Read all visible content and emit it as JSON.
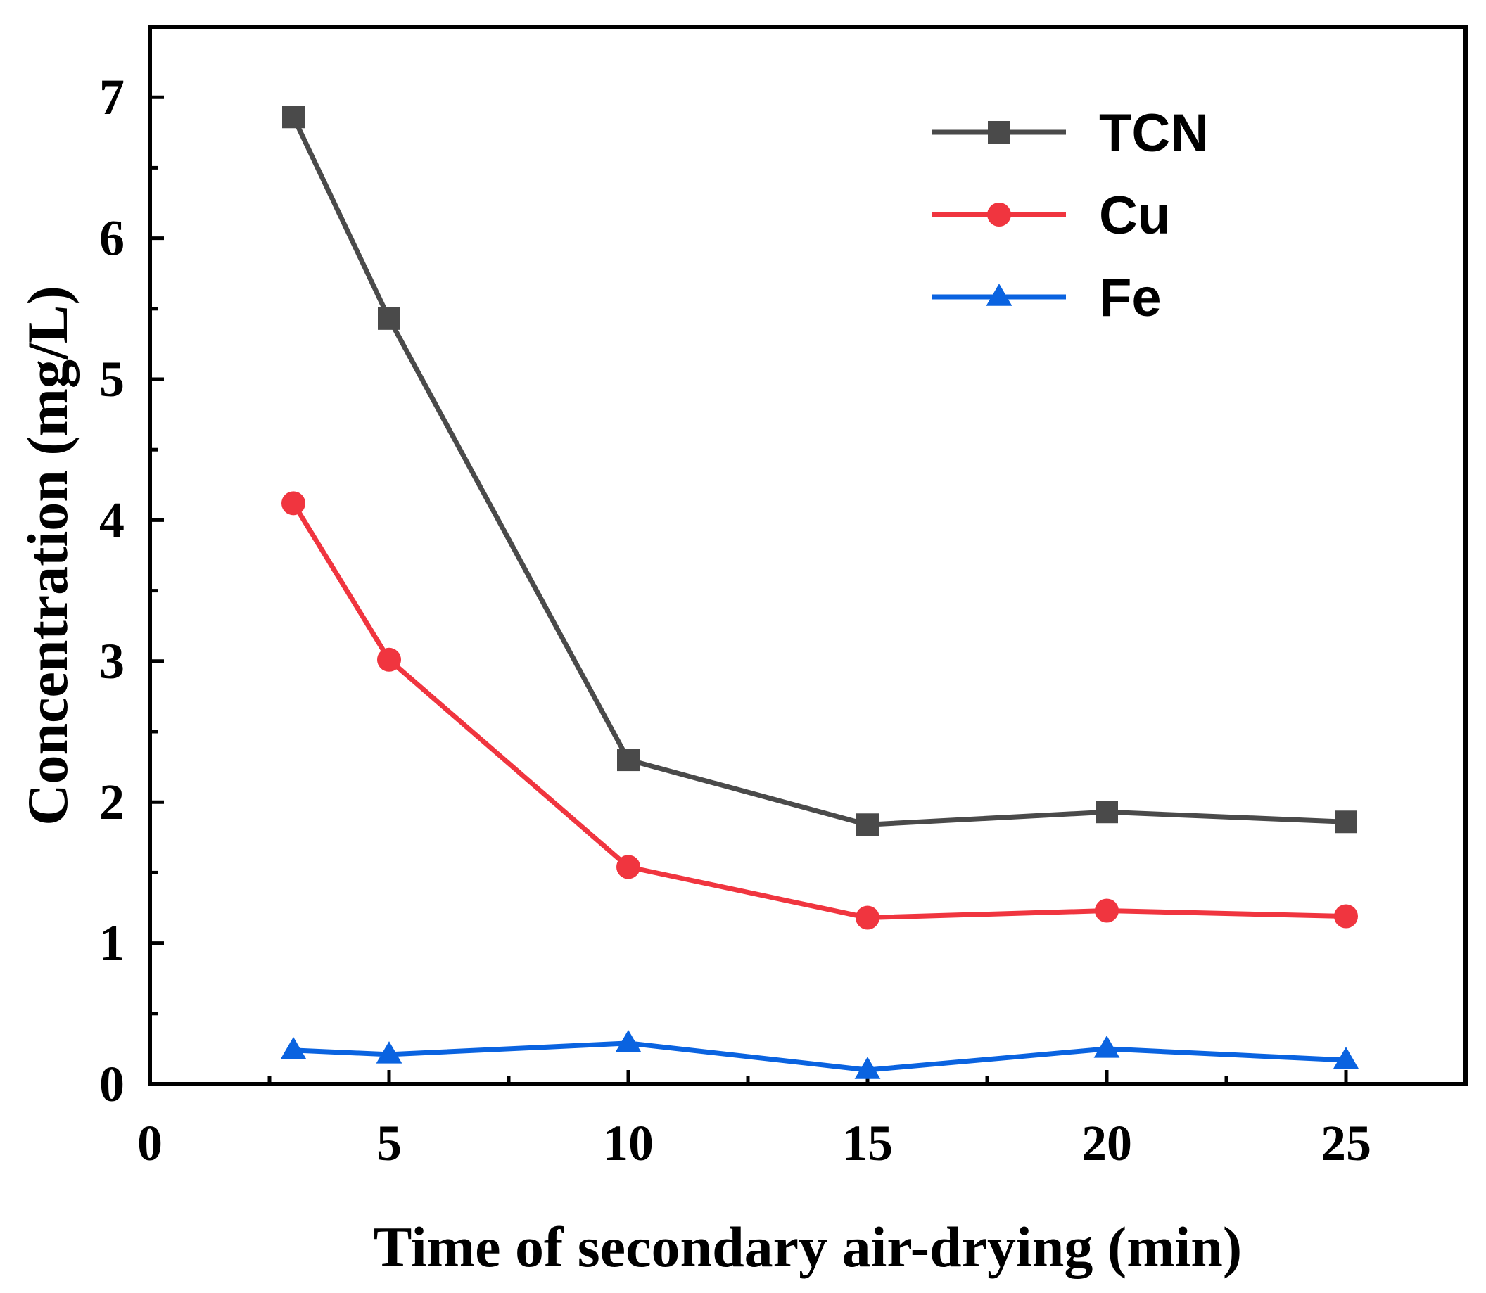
{
  "chart_data": {
    "type": "line",
    "title": "",
    "xlabel": "Time of secondary air-drying (min)",
    "ylabel": "Concentration (mg/L)",
    "xlim": [
      0,
      27.5
    ],
    "ylim": [
      0,
      7.5
    ],
    "xticks": [
      0,
      5,
      10,
      15,
      20,
      25
    ],
    "xtick_labels": [
      "0",
      "5",
      "10",
      "15",
      "20",
      "25"
    ],
    "yticks": [
      0,
      1,
      2,
      3,
      4,
      5,
      6,
      7
    ],
    "ytick_labels": [
      "0",
      "1",
      "2",
      "3",
      "4",
      "5",
      "6",
      "7"
    ],
    "x": [
      3,
      5,
      10,
      15,
      20,
      25
    ],
    "legend_position": "top-right",
    "grid": false,
    "series": [
      {
        "name": "TCN",
        "marker": "square",
        "color": "#4a4a4a",
        "values": [
          6.86,
          5.43,
          2.3,
          1.84,
          1.93,
          1.86
        ]
      },
      {
        "name": "Cu",
        "marker": "circle",
        "color": "#f0353f",
        "values": [
          4.12,
          3.01,
          1.54,
          1.18,
          1.23,
          1.19
        ]
      },
      {
        "name": "Fe",
        "marker": "triangle",
        "color": "#0a63e0",
        "values": [
          0.24,
          0.21,
          0.29,
          0.1,
          0.25,
          0.17
        ]
      }
    ]
  }
}
